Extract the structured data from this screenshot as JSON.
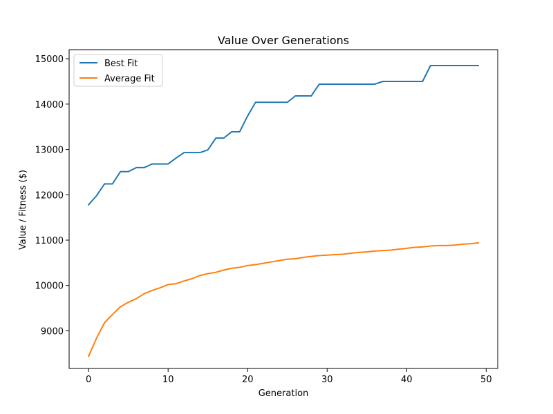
{
  "chart_data": {
    "type": "line",
    "title": "Value Over Generations",
    "xlabel": "Generation",
    "ylabel": "Value / Fitness ($)",
    "xlim": [
      -2.45,
      51.45
    ],
    "ylim": [
      8170,
      15200
    ],
    "xticks": [
      0,
      10,
      20,
      30,
      40,
      50
    ],
    "yticks": [
      9000,
      10000,
      11000,
      12000,
      13000,
      14000,
      15000
    ],
    "grid": false,
    "legend_position": "top-left",
    "x": [
      0,
      1,
      2,
      3,
      4,
      5,
      6,
      7,
      8,
      9,
      10,
      11,
      12,
      13,
      14,
      15,
      16,
      17,
      18,
      19,
      20,
      21,
      22,
      23,
      24,
      25,
      26,
      27,
      28,
      29,
      30,
      31,
      32,
      33,
      34,
      35,
      36,
      37,
      38,
      39,
      40,
      41,
      42,
      43,
      44,
      45,
      46,
      47,
      48,
      49
    ],
    "series": [
      {
        "name": "Best Fit",
        "color": "#1f77b4",
        "values": [
          11780,
          11980,
          12240,
          12240,
          12510,
          12510,
          12600,
          12600,
          12680,
          12680,
          12680,
          12810,
          12930,
          12930,
          12930,
          12990,
          13250,
          13250,
          13390,
          13390,
          13740,
          14040,
          14040,
          14040,
          14040,
          14040,
          14180,
          14180,
          14180,
          14440,
          14440,
          14440,
          14440,
          14440,
          14440,
          14440,
          14440,
          14500,
          14500,
          14500,
          14500,
          14500,
          14500,
          14850,
          14850,
          14850,
          14850,
          14850,
          14850,
          14850
        ]
      },
      {
        "name": "Average Fit",
        "color": "#ff7f0e",
        "values": [
          8440,
          8840,
          9180,
          9360,
          9530,
          9630,
          9710,
          9820,
          9890,
          9950,
          10020,
          10040,
          10100,
          10150,
          10220,
          10260,
          10290,
          10340,
          10380,
          10400,
          10440,
          10460,
          10490,
          10520,
          10550,
          10580,
          10590,
          10620,
          10640,
          10660,
          10670,
          10680,
          10690,
          10710,
          10730,
          10740,
          10760,
          10770,
          10780,
          10800,
          10820,
          10840,
          10850,
          10870,
          10880,
          10880,
          10890,
          10910,
          10920,
          10940
        ]
      }
    ]
  }
}
